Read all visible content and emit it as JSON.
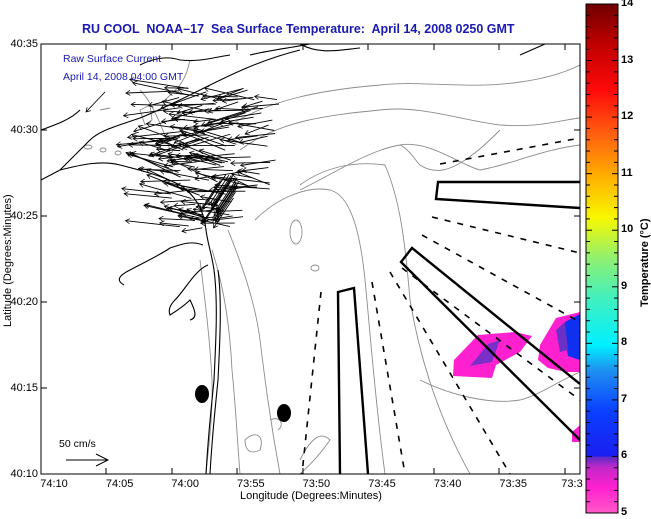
{
  "title": "RU COOL  NOAA–17  Sea Surface Temperature:  April 14, 2008 0250 GMT",
  "annotation": {
    "line1": "Raw Surface Current",
    "line2": "April 14, 2008 04:00 GMT"
  },
  "scale_label": "50 cm/s",
  "axes": {
    "xlabel": "Longitude (Degrees:Minutes)",
    "ylabel": "Latitude (Degrees:Minutes)",
    "xticks": [
      "74:10",
      "74:05",
      "74:00",
      "73:55",
      "73:50",
      "73:45",
      "73:40",
      "73:35",
      "73:3"
    ],
    "yticks": [
      "40:35",
      "40:30",
      "40:25",
      "40:20",
      "40:15",
      "40:10"
    ]
  },
  "colorbar": {
    "label": "Temperature (°C)",
    "ticks": [
      "14",
      "13",
      "12",
      "11",
      "10",
      "9",
      "8",
      "7",
      "6",
      "5"
    ],
    "range": [
      5,
      14
    ]
  },
  "colors": {
    "title": "#1a1ab0",
    "coast": "#000000",
    "bathymetry": "#8c8c8c"
  }
}
